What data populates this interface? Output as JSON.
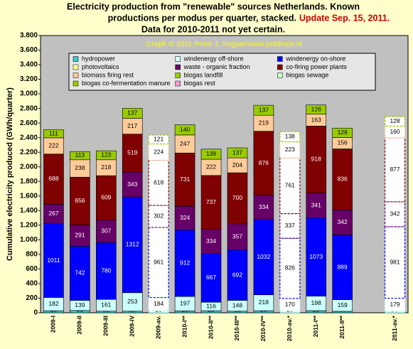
{
  "chart_data": {
    "type": "stacked-bar",
    "title_lines": [
      "Electricity production from \"renewable\" sources Netherlands. Known",
      "productions per modus per quarter, stacked."
    ],
    "update": "Update Sep. 15, 2011.",
    "subtitle": "Data for 2010-2011 not yet certain.",
    "credit": "Graph © 2011 Peter J. Segaar/www.polderpv.nl",
    "y_label": "Cumulative electricity produced (GWh/quarter)",
    "categories": [
      "2009-I",
      "2009-II",
      "2009-III",
      "2009-IV",
      "2009-av.",
      "2010-I**",
      "2010-II**",
      "2010-III**",
      "2010-IV**",
      "2010-av.*",
      "2011-I**",
      "2011-II**",
      null,
      "2011-av.*"
    ],
    "styles": [
      "solid",
      "solid",
      "solid",
      "solid",
      "dashed",
      "solid",
      "solid",
      "solid",
      "solid",
      "dashed",
      "solid",
      "solid",
      null,
      "dashed"
    ],
    "series": [
      {
        "name": "hydropower",
        "color": "#33cccc",
        "label_color": "#000000",
        "values": [
          28,
          31,
          22,
          22,
          25,
          26,
          28,
          22,
          28,
          26,
          29,
          20,
          null,
          20
        ]
      },
      {
        "name": "windenergy off-shore",
        "color": "#ccffff",
        "label_color": "#000000",
        "values": [
          182,
          139,
          161,
          253,
          184,
          197,
          116,
          148,
          218,
          170,
          198,
          159,
          null,
          179
        ]
      },
      {
        "name": "windenergy on-shore",
        "color": "#0000ff",
        "label_color": "#ffffff",
        "values": [
          1011,
          742,
          780,
          1312,
          961,
          912,
          667,
          692,
          1032,
          826,
          1073,
          889,
          null,
          981
        ]
      },
      {
        "name": "photovoltaics",
        "color": "#ffff99",
        "label_color": "#000000",
        "values": [
          0,
          0,
          0,
          0,
          0,
          0,
          0,
          0,
          0,
          0,
          0,
          0,
          null,
          0
        ]
      },
      {
        "name": "waste - organic fraction",
        "color": "#660066",
        "label_color": "#ffffff",
        "values": [
          267,
          291,
          307,
          343,
          302,
          324,
          334,
          357,
          334,
          337,
          341,
          342,
          null,
          342
        ]
      },
      {
        "name": "co-firing power plants",
        "color": "#800000",
        "label_color": "#ffffff",
        "values": [
          688,
          656,
          609,
          519,
          618,
          731,
          737,
          700,
          876,
          761,
          918,
          836,
          null,
          877
        ]
      },
      {
        "name": "biomass firing rest",
        "color": "#ffcc99",
        "label_color": "#000000",
        "values": [
          222,
          238,
          218,
          217,
          224,
          247,
          222,
          204,
          219,
          223,
          163,
          156,
          null,
          160
        ]
      },
      {
        "name": "biogas landfill",
        "color": "#99cc00",
        "label_color": "#000000",
        "values": [
          0,
          0,
          0,
          0,
          0,
          0,
          0,
          0,
          0,
          0,
          0,
          0,
          null,
          0
        ]
      },
      {
        "name": "biogas sewage",
        "color": "#ccffcc",
        "label_color": "#000000",
        "values": [
          0,
          0,
          0,
          0,
          0,
          0,
          0,
          0,
          0,
          0,
          0,
          0,
          null,
          0
        ]
      },
      {
        "name": "biogas co-fermentation manure",
        "color": "#99cc00",
        "label_color": "#000000",
        "values": [
          111,
          113,
          123,
          137,
          121,
          140,
          139,
          137,
          137,
          138,
          126,
          129,
          null,
          128
        ]
      },
      {
        "name": "biogas rest",
        "color": "#ff99cc",
        "label_color": "#000000",
        "values": [
          0,
          0,
          0,
          0,
          0,
          0,
          0,
          0,
          0,
          0,
          0,
          0,
          null,
          0
        ]
      }
    ],
    "ylim": [
      0,
      3800
    ],
    "yticks": [
      0,
      200,
      400,
      600,
      800,
      {
        "value": 1000,
        "label": "1.000"
      },
      {
        "value": 1200,
        "label": "1.200"
      },
      {
        "value": 1400,
        "label": "1.400"
      },
      {
        "value": 1600,
        "label": "1.600"
      },
      {
        "value": 1800,
        "label": "1.800"
      },
      {
        "value": 2000,
        "label": "2.000"
      },
      {
        "value": 2200,
        "label": "2.200"
      },
      {
        "value": 2400,
        "label": "2.400"
      },
      {
        "value": 2600,
        "label": "2.600"
      },
      {
        "value": 2800,
        "label": "2.800"
      },
      {
        "value": 3000,
        "label": "3.000"
      },
      {
        "value": 3200,
        "label": "3.200"
      },
      {
        "value": 3400,
        "label": "3.400"
      },
      {
        "value": 3600,
        "label": "3.600"
      },
      {
        "value": 3800,
        "label": "3.800"
      }
    ],
    "plot_background": "#c0c0c0"
  }
}
